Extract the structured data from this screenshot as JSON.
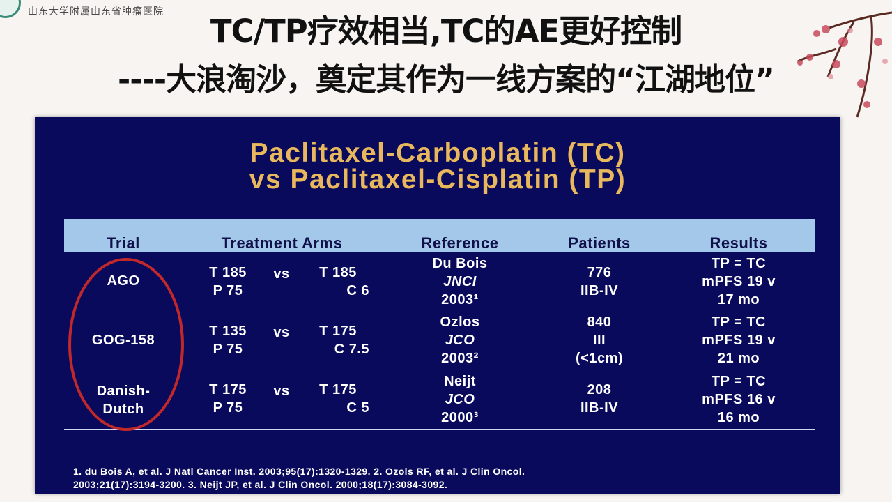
{
  "header": {
    "org_name": "山东大学附属山东省肿瘤医院",
    "title_line1": "TC/TP疗效相当,TC的AE更好控制",
    "title_line2": "----大浪淘沙，奠定其作为一线方案的“江湖地位”"
  },
  "slide": {
    "title_line1": "Paclitaxel-Carboplatin (TC)",
    "title_line2": "vs Paclitaxel-Cisplatin (TP)",
    "columns": [
      "Trial",
      "Treatment Arms",
      "Reference",
      "Patients",
      "Results"
    ],
    "rows": [
      {
        "trial": [
          "AGO"
        ],
        "arm_left": [
          "T 185",
          "P 75"
        ],
        "vs": "vs",
        "arm_right": [
          "T 185",
          "C 6"
        ],
        "reference": [
          "Du Bois",
          "JNCI",
          "2003¹"
        ],
        "patients": [
          "776",
          "IIB-IV"
        ],
        "results": [
          "TP = TC",
          "mPFS 19 v",
          "17 mo"
        ]
      },
      {
        "trial": [
          "GOG-158"
        ],
        "arm_left": [
          "T 135",
          "P 75"
        ],
        "vs": "vs",
        "arm_right": [
          "T 175",
          "C 7.5"
        ],
        "reference": [
          "Ozlos",
          "JCO",
          "2003²"
        ],
        "patients": [
          "840",
          "III",
          "(<1cm)"
        ],
        "results": [
          "TP = TC",
          "mPFS 19 v",
          "21 mo"
        ]
      },
      {
        "trial": [
          "Danish-",
          "Dutch"
        ],
        "arm_left": [
          "T 175",
          "P 75"
        ],
        "vs": "vs",
        "arm_right": [
          "T 175",
          "C 5"
        ],
        "reference": [
          "Neijt",
          "JCO",
          "2000³"
        ],
        "patients": [
          "208",
          "IIB-IV"
        ],
        "results": [
          "TP = TC",
          "mPFS 16 v",
          "16 mo"
        ]
      }
    ],
    "footnote_line1": "1. du Bois A, et al. J Natl Cancer Inst. 2003;95(17):1320-1329.  2. Ozols RF, et al. J Clin Oncol.",
    "footnote_line2": "2003;21(17):3194-3200. 3. Neijt JP, et al. J Clin Oncol. 2000;18(17):3084-3092."
  },
  "colors": {
    "slide_bg": "#0a0a5c",
    "slide_title": "#e9b85c",
    "header_bar": "#a4c8ea",
    "highlight_oval": "#c0282a"
  }
}
